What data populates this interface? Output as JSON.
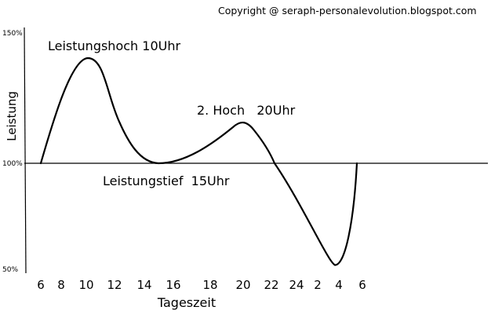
{
  "copyright": "Copyright @ seraph-personalevolution.blogspot.com",
  "chart_data": {
    "type": "line",
    "title": "",
    "xlabel": "Tageszeit",
    "ylabel": "Leistung",
    "x_ticks": [
      "6",
      "8",
      "10",
      "12",
      "14",
      "16",
      "18",
      "20",
      "22",
      "24",
      "2",
      "4",
      "6"
    ],
    "y_ticks": [
      "150%",
      "100%",
      "50%"
    ],
    "ylim": [
      50,
      150
    ],
    "grid": false,
    "series": [
      {
        "x": [
          "6",
          "10",
          "15",
          "20",
          "22",
          "4",
          "6"
        ],
        "y": [
          100,
          140,
          100,
          116,
          100,
          52,
          100
        ]
      }
    ],
    "annotations": [
      "Leistungshoch 10Uhr",
      "2. Hoch   20Uhr",
      "Leistungstief  15Uhr"
    ]
  }
}
